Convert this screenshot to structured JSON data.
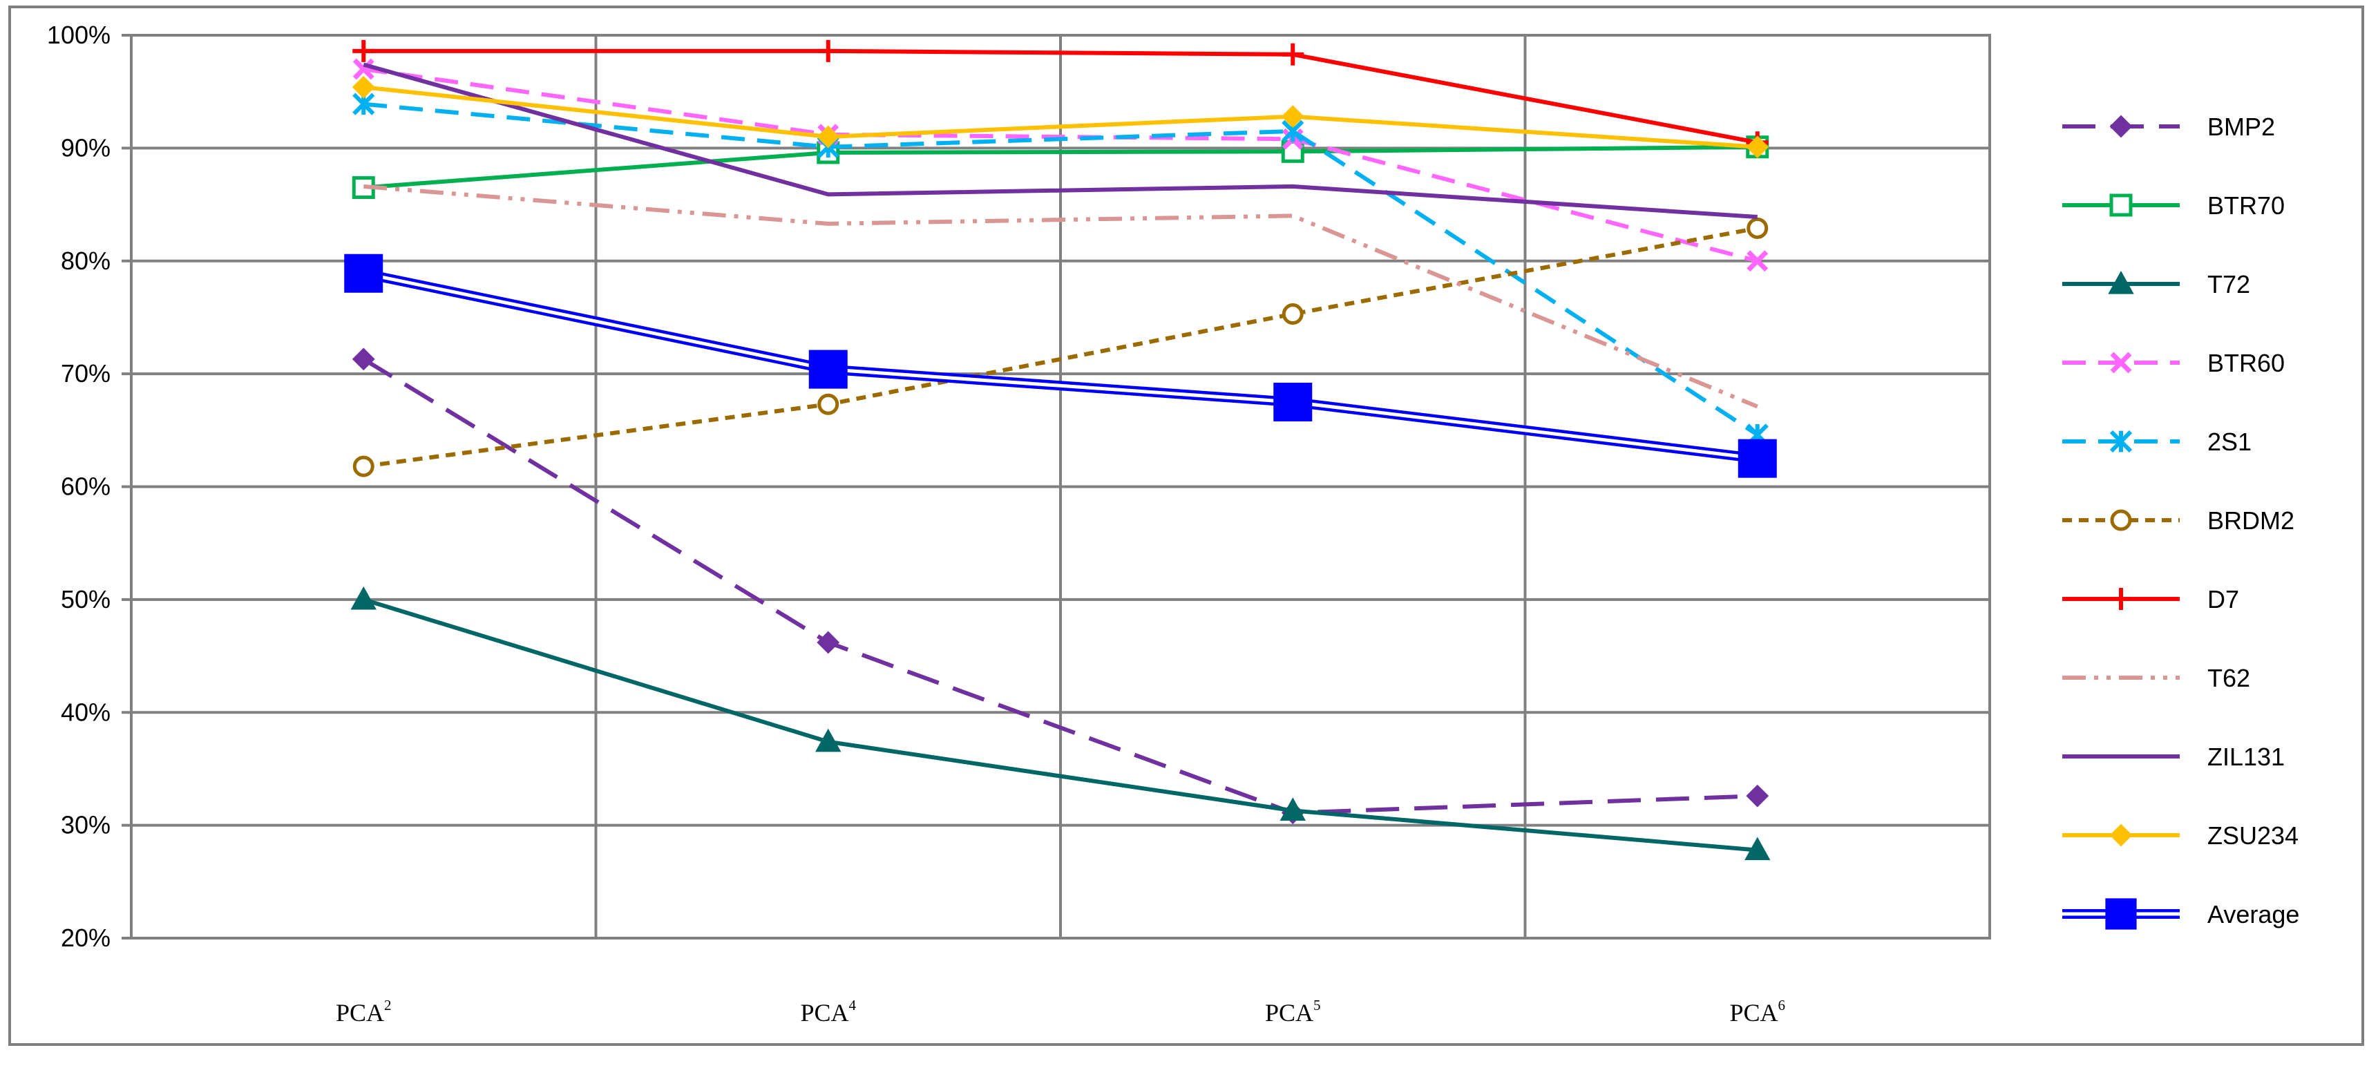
{
  "chart_data": {
    "type": "line",
    "categories": [
      {
        "base": "PCA",
        "sup": "2"
      },
      {
        "base": "PCA",
        "sup": "4"
      },
      {
        "base": "PCA",
        "sup": "5"
      },
      {
        "base": "PCA",
        "sup": "6"
      }
    ],
    "ylim": [
      20,
      100
    ],
    "yticks": [
      20,
      30,
      40,
      50,
      60,
      70,
      80,
      90,
      100
    ],
    "ytick_labels": [
      "20%",
      "30%",
      "40%",
      "50%",
      "60%",
      "70%",
      "80%",
      "90%",
      "100%"
    ],
    "grid": true,
    "legend_position": "right",
    "series": [
      {
        "name": "BMP2",
        "values": [
          71.3,
          46.2,
          31.1,
          32.6
        ],
        "color": "#7030a0",
        "dash": "long-dash",
        "marker": "diamond"
      },
      {
        "name": "BTR70",
        "values": [
          86.5,
          89.6,
          89.7,
          90.1
        ],
        "color": "#00b050",
        "dash": "solid",
        "marker": "open-square"
      },
      {
        "name": "T72",
        "values": [
          50.0,
          37.4,
          31.3,
          27.8
        ],
        "color": "#006666",
        "dash": "solid",
        "marker": "triangle"
      },
      {
        "name": "BTR60",
        "values": [
          97.0,
          91.2,
          90.8,
          80.0
        ],
        "color": "#ff66ff",
        "dash": "dash",
        "marker": "x"
      },
      {
        "name": "2S1",
        "values": [
          93.9,
          90.1,
          91.5,
          64.6
        ],
        "color": "#00b0f0",
        "dash": "dash",
        "marker": "star"
      },
      {
        "name": "BRDM2",
        "values": [
          61.8,
          67.3,
          75.3,
          82.9
        ],
        "color": "#9c6b00",
        "dash": "dot",
        "marker": "open-circle"
      },
      {
        "name": "D7",
        "values": [
          98.6,
          98.6,
          98.3,
          90.5
        ],
        "color": "#ff0000",
        "dash": "solid",
        "marker": "plus"
      },
      {
        "name": "T62",
        "values": [
          86.6,
          83.3,
          84.0,
          67.1
        ],
        "color": "#d99694",
        "dash": "dash-dot-dot",
        "marker": "none"
      },
      {
        "name": "ZIL131",
        "values": [
          97.4,
          85.9,
          86.6,
          83.9
        ],
        "color": "#7030a0",
        "dash": "solid",
        "marker": "none"
      },
      {
        "name": "ZSU234",
        "values": [
          95.4,
          91.0,
          92.8,
          90.1
        ],
        "color": "#ffc000",
        "dash": "solid",
        "marker": "diamond"
      },
      {
        "name": "Average",
        "values": [
          78.9,
          70.4,
          67.5,
          62.5
        ],
        "color": "#0000ff",
        "dash": "double",
        "marker": "square"
      }
    ]
  }
}
